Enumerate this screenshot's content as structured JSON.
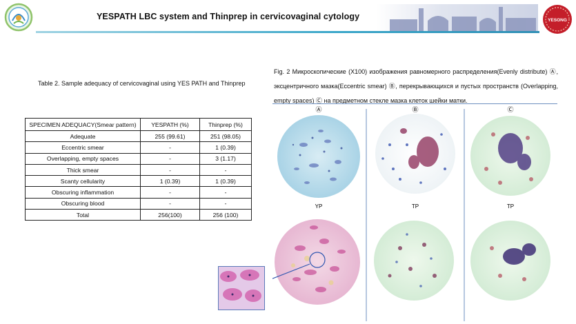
{
  "header": {
    "title": "YESPATH LBC system and Thinprep in cervicovaginal cytology",
    "right_logo_text": "YESONG"
  },
  "table": {
    "caption": "Table 2. Sample adequacy of cervicovaginal using YES PATH and Thinprep",
    "headers": [
      "SPECIMEN ADEQUACY(Smear pattern)",
      "YESPATH (%)",
      "Thinprep (%)"
    ],
    "rows": [
      [
        "Adequate",
        "255 (99.61)",
        "251 (98.05)"
      ],
      [
        "Eccentric smear",
        "-",
        "1 (0.39)"
      ],
      [
        "Overlapping, empty spaces",
        "-",
        "3 (1.17)"
      ],
      [
        "Thick smear",
        "-",
        "-"
      ],
      [
        "Scanty cellularity",
        "1 (0.39)",
        "1 (0.39)"
      ],
      [
        "Obscuring inflammation",
        "-",
        "-"
      ],
      [
        "Obscuring blood",
        "-",
        "-"
      ],
      [
        "Total",
        "256(100)",
        "256 (100)"
      ]
    ]
  },
  "figure": {
    "caption": "Fig. 2 Микроскопические (X100) изображения равномерного распределения(Evenly distribute) Ⓐ, эксцентричного мазка(Eccentric smear) Ⓑ, перекрывающихся и пустых пространств (Overlapping, empty spaces) Ⓒ на предметном стекле мазка клеток шейки матки.",
    "column_labels": [
      "Ⓐ",
      "Ⓑ",
      "Ⓒ"
    ],
    "sub_labels": [
      "YP",
      "TP",
      "TP"
    ]
  },
  "colors": {
    "header_line": "#39a6c9",
    "logo_right": "#c41e2a",
    "divider": "#6c8fbf"
  }
}
